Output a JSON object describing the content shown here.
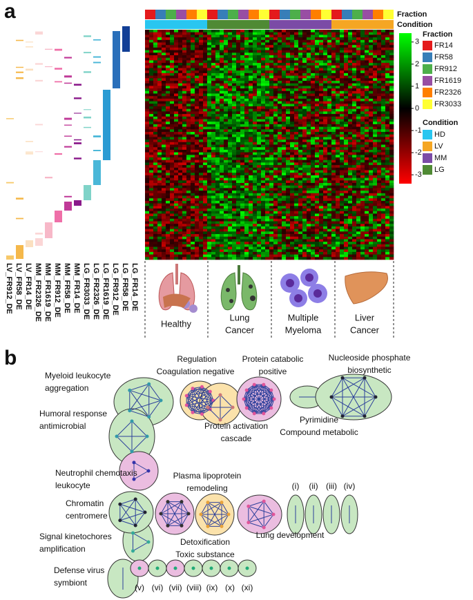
{
  "panel_a": {
    "label": "a",
    "fraction_bar_label": "Fraction",
    "condition_bar_label": "Condition",
    "legend_fraction": {
      "title": "Fraction",
      "items": [
        {
          "name": "FR14",
          "color": "#e41a1c"
        },
        {
          "name": "FR58",
          "color": "#377eb8"
        },
        {
          "name": "FR912",
          "color": "#4daf4a"
        },
        {
          "name": "FR1619",
          "color": "#984ea3"
        },
        {
          "name": "FR2326",
          "color": "#ff7f00"
        },
        {
          "name": "FR3033",
          "color": "#ffff33"
        }
      ]
    },
    "legend_condition": {
      "title": "Condition",
      "items": [
        {
          "name": "HD",
          "color": "#29c6f0"
        },
        {
          "name": "LV",
          "color": "#f5a623"
        },
        {
          "name": "MM",
          "color": "#7b4ba6"
        },
        {
          "name": "LG",
          "color": "#4f8a34"
        }
      ]
    },
    "colorbar": {
      "lim": [
        -3.4,
        3.4
      ],
      "ticks": [
        3,
        2,
        1,
        0,
        -1,
        -2,
        -3
      ]
    },
    "column_labels": [
      "LV_FR912_DE",
      "LV_FR58_DE",
      "LV_FR14_DE",
      "MM_FR2326_DE",
      "MM_FR1619_DE",
      "MM_FR912_DE",
      "MM_FR58_DE",
      "MM_FR14_DE",
      "LG_FR3033_DE",
      "LG_FR2326_DE",
      "LG_FR1619_DE",
      "LG_FR912_DE",
      "LG_FR58_DE",
      "LG_FR14_DE"
    ],
    "conditions": [
      [
        "Healthy"
      ],
      [
        "Lung",
        "Cancer"
      ],
      [
        "Multiple",
        "Myeloma"
      ],
      [
        "Liver",
        "Cancer"
      ]
    ]
  },
  "panel_b": {
    "label": "b",
    "terms": [
      [
        "Myeloid leukocyte",
        "aggregation"
      ],
      [
        "Regulation"
      ],
      [
        "Coagulation negative"
      ],
      [
        "Protein catabolic",
        "positive"
      ],
      [
        "Nucleoside phosphate",
        "biosynthetic"
      ],
      [
        "Humoral response",
        "antimicrobial"
      ],
      [
        "Protein activation",
        "cascade"
      ],
      [
        "Pyrimidine",
        "Compound metabolic"
      ],
      [
        "Neutrophil chemotaxis",
        "leukocyte"
      ],
      [
        "Plasma lipoprotein",
        "remodeling"
      ],
      [
        "Chromatin",
        "centromere"
      ],
      [
        "Lung development"
      ],
      [
        "Signal kinetochores",
        "amplification"
      ],
      [
        "Detoxification",
        "Toxic substance"
      ],
      [
        "Defense virus",
        "symbiont"
      ]
    ],
    "numerals": [
      "(i)",
      "(ii)",
      "(iii)",
      "(iv)",
      "(v)",
      "(vi)",
      "(vii)",
      "(viii)",
      "(ix)",
      "(x)",
      "(xi)"
    ]
  }
}
